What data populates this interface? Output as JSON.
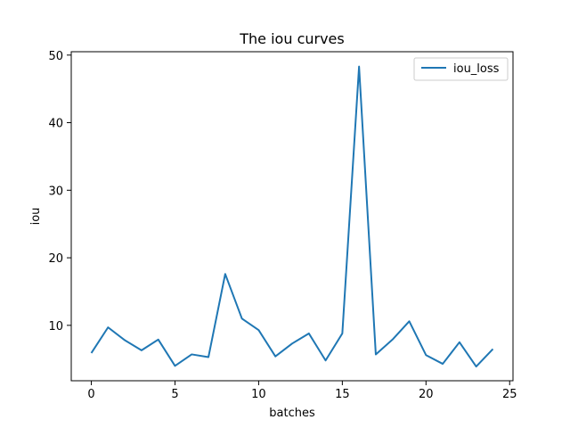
{
  "chart_data": {
    "type": "line",
    "title": "The iou curves",
    "xlabel": "batches",
    "ylabel": "iou",
    "xlim": [
      -1.2,
      25.2
    ],
    "ylim": [
      1.8,
      50.5
    ],
    "xticks": [
      0,
      5,
      10,
      15,
      20,
      25
    ],
    "yticks": [
      10,
      20,
      30,
      40,
      50
    ],
    "grid": false,
    "legend_position": "top-right",
    "series": [
      {
        "name": "iou_loss",
        "color": "#1f77b4",
        "x": [
          0,
          1,
          2,
          3,
          4,
          5,
          6,
          7,
          8,
          9,
          10,
          11,
          12,
          13,
          14,
          15,
          16,
          17,
          18,
          19,
          20,
          21,
          22,
          23,
          24
        ],
        "values": [
          5.9,
          9.7,
          7.8,
          6.3,
          7.9,
          4.0,
          5.7,
          5.3,
          17.6,
          11.0,
          9.3,
          5.4,
          7.3,
          8.8,
          4.8,
          8.8,
          48.3,
          5.7,
          7.9,
          10.6,
          5.6,
          4.3,
          7.5,
          3.9,
          6.5
        ]
      }
    ]
  }
}
